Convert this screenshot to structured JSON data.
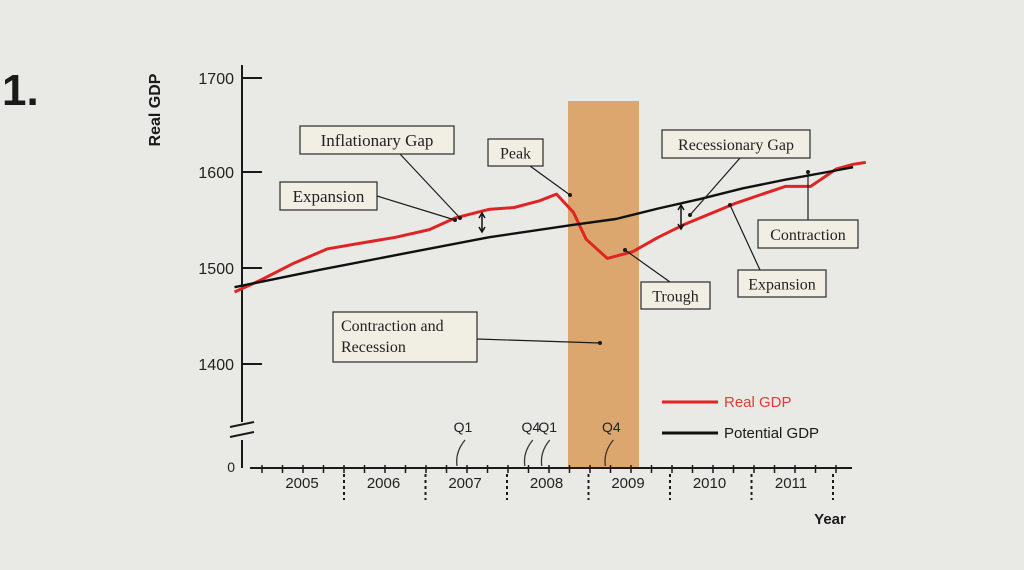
{
  "problem_number": "1.",
  "chart_data": {
    "type": "line",
    "xlabel": "Year",
    "ylabel": "Real GDP",
    "ylim": [
      1350,
      1700
    ],
    "y_ticks": [
      {
        "value": 1700,
        "label": "1700"
      },
      {
        "value": 1600,
        "label": "1600"
      },
      {
        "value": 1500,
        "label": "1500"
      },
      {
        "value": 1400,
        "label": "1400"
      }
    ],
    "y_origin_label": "0",
    "y_axis_break": true,
    "xlim": [
      2004.4,
      2012.0
    ],
    "x_ticks": [
      "2005",
      "2006",
      "2007",
      "2008",
      "2009",
      "2010",
      "2011"
    ],
    "series": [
      {
        "name": "Real GDP",
        "color": "#e02424",
        "x": [
          2004.5,
          2004.8,
          2005.2,
          2005.6,
          2006.0,
          2006.4,
          2006.8,
          2007.1,
          2007.5,
          2007.8,
          2008.1,
          2008.3,
          2008.5,
          2008.65,
          2008.9,
          2009.2,
          2009.5,
          2009.8,
          2010.1,
          2010.4,
          2010.7,
          2011.0,
          2011.3,
          2011.6,
          2011.8,
          2011.95
        ],
        "values": [
          1475,
          1487,
          1505,
          1520,
          1526,
          1532,
          1540,
          1552,
          1561,
          1563,
          1570,
          1577,
          1558,
          1530,
          1510,
          1517,
          1532,
          1545,
          1556,
          1567,
          1576,
          1585,
          1585,
          1603,
          1608,
          1610
        ]
      },
      {
        "name": "Potential GDP",
        "color": "#111111",
        "x": [
          2004.5,
          2005.5,
          2006.5,
          2007.5,
          2008.5,
          2009.0,
          2009.5,
          2010.0,
          2010.5,
          2011.0,
          2011.5,
          2011.8
        ],
        "values": [
          1480,
          1498,
          1515,
          1532,
          1545,
          1551,
          1562,
          1572,
          1583,
          1592,
          1600,
          1605
        ]
      }
    ],
    "recession_band": {
      "from": 2008.7,
      "to": 2009.35,
      "color": "#d9a060"
    },
    "quarter_marks": [
      {
        "label": "Q1",
        "x": 2007.15
      },
      {
        "label": "Q4",
        "x": 2007.95
      },
      {
        "label": "Q1",
        "x": 2008.15
      },
      {
        "label": "Q4",
        "x": 2008.9
      }
    ],
    "annotations": [
      {
        "text": "Inflationary Gap"
      },
      {
        "text": "Peak"
      },
      {
        "text": "Recessionary Gap"
      },
      {
        "text": "Expansion"
      },
      {
        "text": "Contraction"
      },
      {
        "text": "Trough"
      },
      {
        "text": "Expansion"
      },
      {
        "text": "Contraction and Recession"
      }
    ],
    "legend_placement": "bottom-right",
    "grid": false
  }
}
